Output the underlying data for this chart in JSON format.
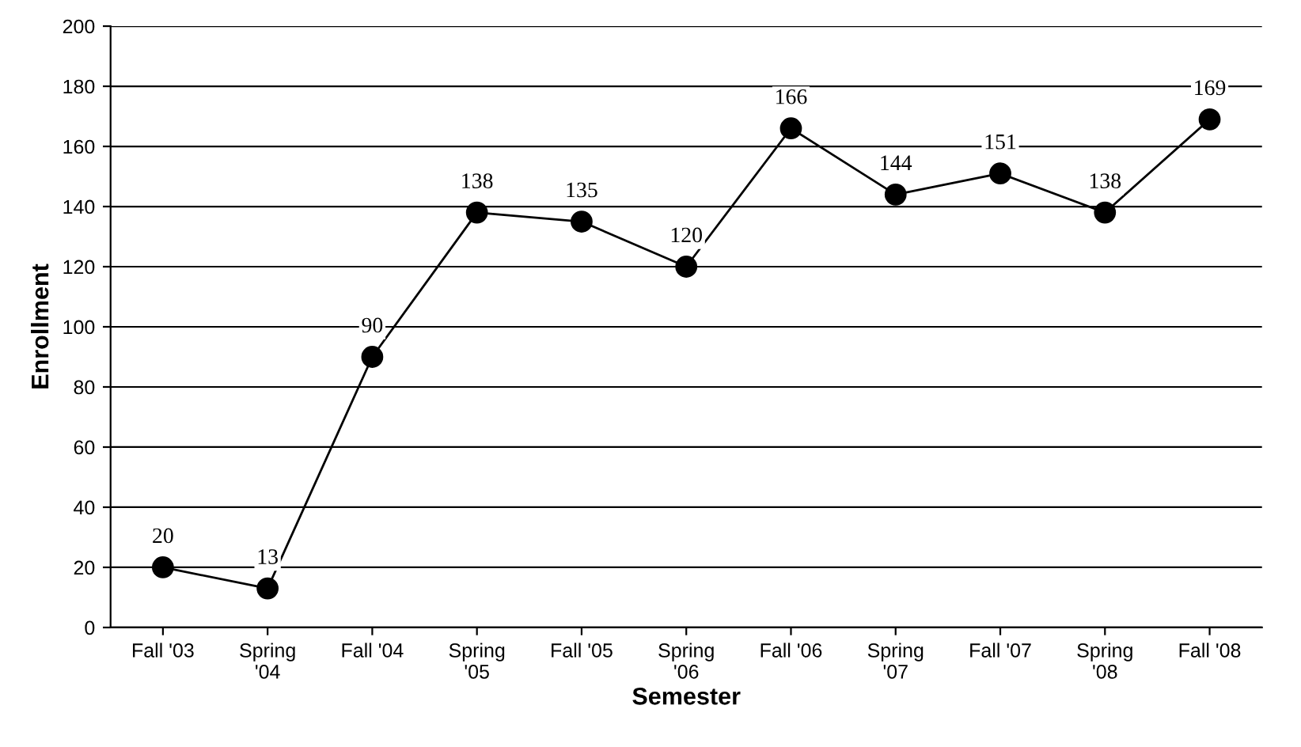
{
  "chart_data": {
    "type": "line",
    "xlabel": "Semester",
    "ylabel": "Enrollment",
    "categories": [
      "Fall '03",
      "Spring\n'04",
      "Fall '04",
      "Spring\n'05",
      "Fall '05",
      "Spring\n'06",
      "Fall '06",
      "Spring\n'07",
      "Fall '07",
      "Spring\n'08",
      "Fall '08"
    ],
    "series": [
      {
        "color": "#000000",
        "values": [
          20,
          13,
          90,
          138,
          135,
          120,
          166,
          144,
          151,
          138,
          169
        ]
      }
    ],
    "ylim": [
      0,
      200
    ],
    "yticks": [
      0,
      20,
      40,
      60,
      80,
      100,
      120,
      140,
      160,
      180,
      200
    ],
    "grid": "y",
    "marker": "circle",
    "line_style": "solid",
    "data_labels": true
  }
}
